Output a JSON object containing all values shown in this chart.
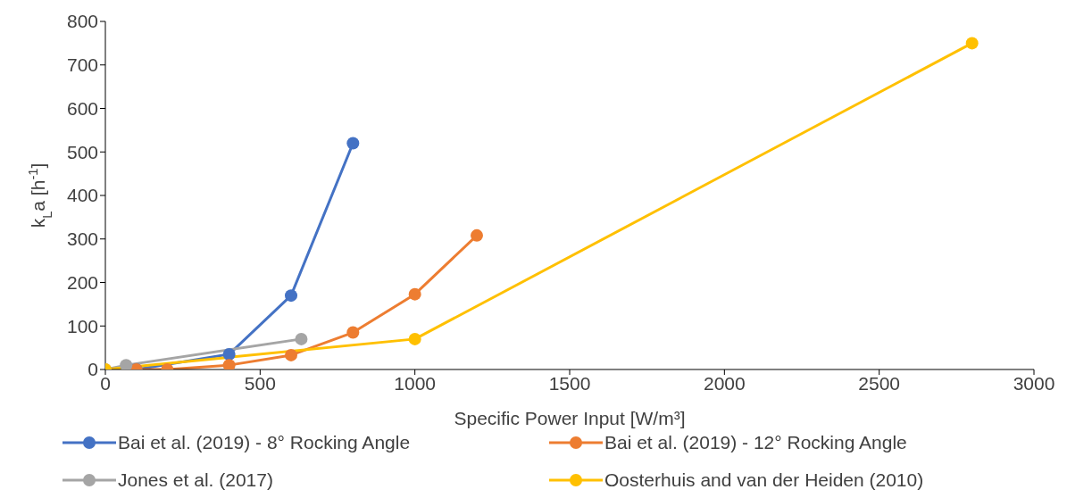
{
  "chart_data": {
    "type": "line",
    "xlabel": "Specific Power Input [W/m³]",
    "ylabel": "k$_{L}$a [h$^{-1}$]",
    "xlim": [
      0,
      3000
    ],
    "xticks": [
      0,
      500,
      1000,
      1500,
      2000,
      2500,
      3000
    ],
    "ylim": [
      0,
      800
    ],
    "yticks": [
      0,
      100,
      200,
      300,
      400,
      500,
      600,
      700,
      800
    ],
    "grid": false,
    "legend": "bottom",
    "marker": "circle",
    "line_style": "solid",
    "series": [
      {
        "name": "Bai et al. (2019) - 8° Rocking Angle",
        "color": "#4472c4",
        "x": [
          100,
          200,
          400,
          600,
          800
        ],
        "values": [
          0,
          null,
          35,
          170,
          520
        ]
      },
      {
        "name": "Bai et al. (2019) - 12° Rocking Angle",
        "color": "#ed7d31",
        "x": [
          100,
          200,
          400,
          600,
          800,
          1000,
          1200
        ],
        "values": [
          0,
          0,
          10,
          33,
          85,
          173,
          308
        ]
      },
      {
        "name": "Jones et al. (2017)",
        "color": "#a5a5a5",
        "x": [
          0,
          67,
          633
        ],
        "values": [
          0,
          10,
          70
        ]
      },
      {
        "name": "Oosterhuis and van der Heiden (2010)",
        "color": "#ffc000",
        "x": [
          0,
          1000,
          2800
        ],
        "values": [
          0,
          70,
          750
        ]
      }
    ]
  }
}
